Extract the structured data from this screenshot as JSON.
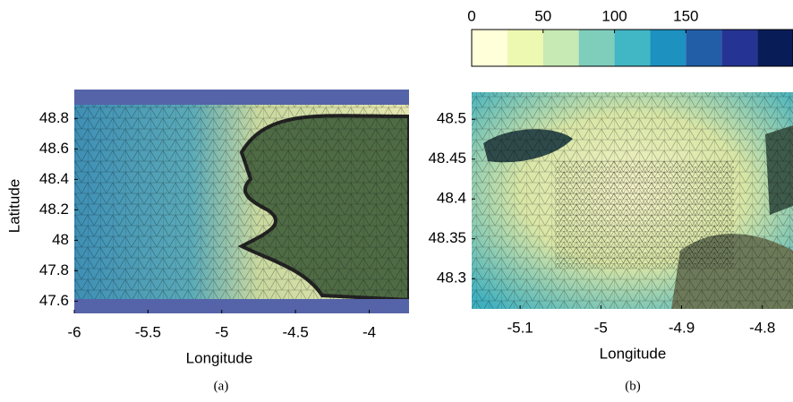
{
  "chart_data": [
    {
      "type": "map",
      "xlabel": "Longitude",
      "ylabel": "Latitude",
      "caption": "(a)",
      "xlim": [
        -6,
        -3.73
      ],
      "ylim": [
        47.52,
        48.99
      ],
      "xticks": [
        -6,
        -5.5,
        -5,
        -4.5,
        -4
      ],
      "yticks": [
        47.6,
        47.8,
        48,
        48.2,
        48.4,
        48.6,
        48.8
      ]
    },
    {
      "type": "map",
      "xlabel": "Longitude",
      "caption": "(b)",
      "xlim": [
        -5.16,
        -4.762
      ],
      "ylim": [
        48.262,
        48.534
      ],
      "xticks": [
        -5.1,
        -5,
        -4.9,
        -4.8
      ],
      "yticks": [
        48.3,
        48.35,
        48.4,
        48.45,
        48.5
      ]
    },
    {
      "type": "colorbar",
      "clim": [
        0,
        225
      ],
      "ticks": [
        0,
        50,
        100,
        150
      ],
      "colors": [
        "#ffffd9",
        "#edf8b1",
        "#c7e9b4",
        "#7fcdbb",
        "#41b6c4",
        "#1d91c0",
        "#225ea8",
        "#253494",
        "#081d58"
      ]
    }
  ]
}
